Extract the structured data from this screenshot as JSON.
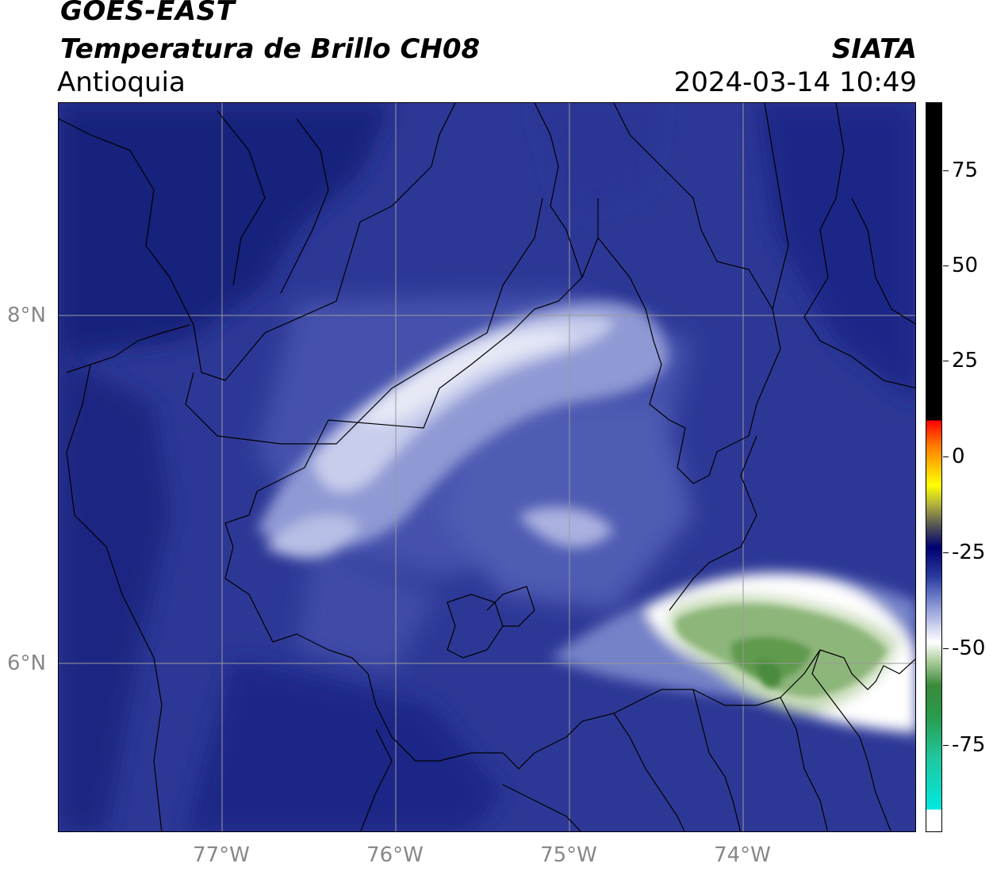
{
  "header": {
    "satellite": "GOES-EAST",
    "product": "Temperatura de Brillo CH08",
    "region": "Antioquia",
    "organization": "SIATA",
    "datetime": "2024-03-14 10:49"
  },
  "axes": {
    "lat_ticks": [
      "8°N",
      "6°N"
    ],
    "lon_ticks": [
      "77°W",
      "76°W",
      "75°W",
      "74°W"
    ]
  },
  "colorbar": {
    "ticks": [
      "75",
      "50",
      "25",
      "0",
      "-25",
      "-50",
      "-75"
    ],
    "colors": [
      "#000000",
      "#ff0000",
      "#ffd000",
      "#ffff00",
      "#000070",
      "#ffffff",
      "#3a8a3a",
      "#00e8e0"
    ]
  },
  "colors": {
    "deep_blue": "#151e7a",
    "mid_blue": "#3a46a0",
    "light_blue": "#7f8ccc",
    "pale": "#dcdff2",
    "green": "#5f9a4e"
  }
}
